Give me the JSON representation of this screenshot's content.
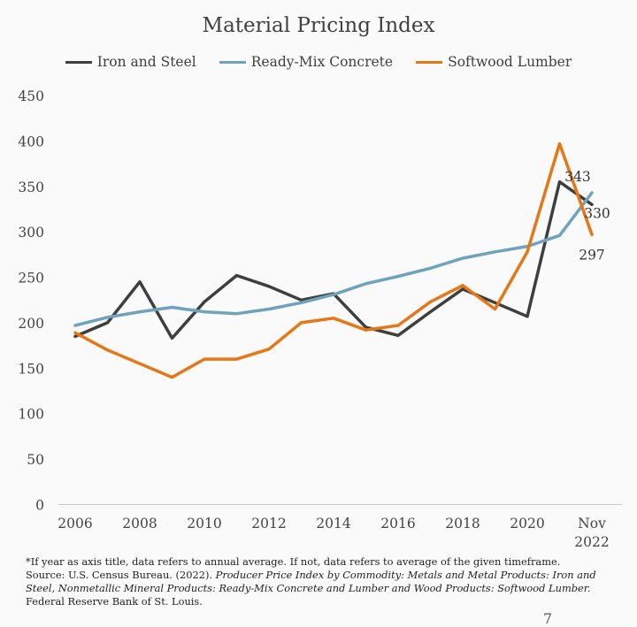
{
  "chart_data": {
    "type": "line",
    "title": "Material Pricing Index",
    "x": [
      "2006",
      "2007",
      "2008",
      "2009",
      "2010",
      "2011",
      "2012",
      "2013",
      "2014",
      "2015",
      "2016",
      "2017",
      "2018",
      "2019",
      "2020",
      "2021",
      "Nov 2022"
    ],
    "x_tick_labels": [
      "2006",
      "2008",
      "2010",
      "2012",
      "2014",
      "2016",
      "2018",
      "2020",
      "Nov",
      "2022"
    ],
    "y_ticks": [
      "0",
      "50",
      "100",
      "150",
      "200",
      "250",
      "300",
      "350",
      "400",
      "450"
    ],
    "ylim": [
      0,
      450
    ],
    "grid": false,
    "legend_position": "top",
    "series": [
      {
        "name": "Iron and Steel",
        "color": "#3d3f3f",
        "values": [
          185,
          200,
          245,
          183,
          223,
          252,
          240,
          225,
          232,
          195,
          186,
          212,
          237,
          222,
          207,
          355,
          330
        ]
      },
      {
        "name": "Ready-Mix Concrete",
        "color": "#6fa3bd",
        "values": [
          197,
          206,
          212,
          217,
          212,
          210,
          215,
          222,
          231,
          243,
          251,
          260,
          271,
          278,
          284,
          296,
          343
        ]
      },
      {
        "name": "Softwood Lumber",
        "color": "#e67716",
        "values": [
          189,
          170,
          155,
          140,
          160,
          160,
          171,
          200,
          205,
          192,
          197,
          223,
          241,
          215,
          278,
          397,
          297
        ]
      }
    ],
    "end_labels": [
      {
        "series": "Ready-Mix Concrete",
        "text": "343"
      },
      {
        "series": "Iron and Steel",
        "text": "330"
      },
      {
        "series": "Softwood Lumber",
        "text": "297"
      }
    ]
  },
  "notes": {
    "line1": "*If year as axis title, data refers to annual average. If not, data refers to average of the given timeframe.",
    "source_prefix": "Source: U.S. Census Bureau. (2022). ",
    "source_italic": "Producer Price Index by Commodity: Metals and Metal Products: Iron and Steel, Nonmetallic Mineral Products: Ready-Mix Concrete and Lumber and Wood Products: Softwood Lumber.",
    "line_last": "Federal Reserve Bank of St. Louis."
  },
  "page_number": "7"
}
